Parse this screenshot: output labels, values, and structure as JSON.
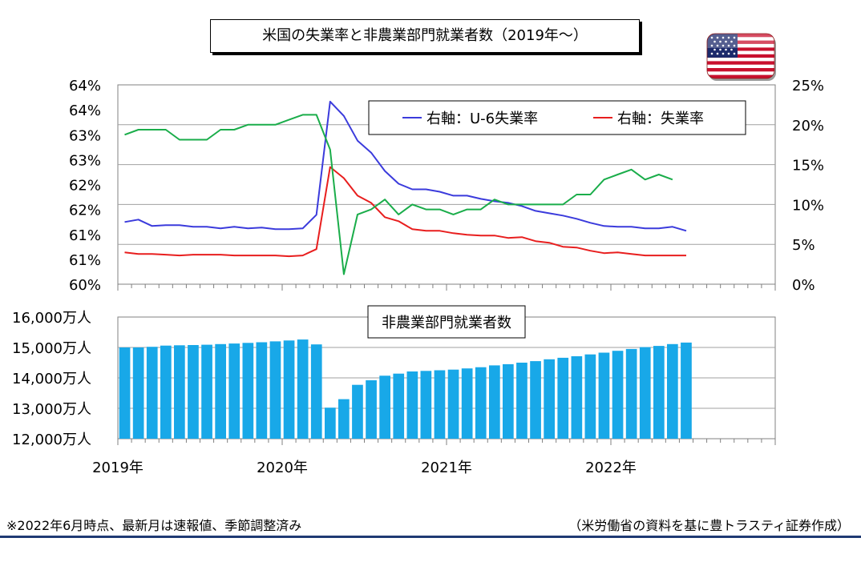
{
  "title": "米国の失業率と非農業部門就業者数（2019年〜）",
  "footer": {
    "note": "※2022年6月時点、最新月は速報値、季節調整済み",
    "source": "（米労働省の資料を基に豊トラスティ証券作成）"
  },
  "chart_data": [
    {
      "type": "line",
      "y_ticks_left": [
        "60%",
        "61%",
        "61%",
        "62%",
        "62%",
        "63%",
        "63%",
        "64%",
        "64%"
      ],
      "y_ticks_right": [
        "0%",
        "5%",
        "10%",
        "15%",
        "20%",
        "25%"
      ],
      "ylim_left": [
        60,
        64
      ],
      "ylim_right": [
        0,
        25
      ],
      "legend_position": "top-right",
      "series": [
        {
          "name": "右軸：U-6失業率",
          "axis": "right",
          "color": "#3b3bdc",
          "values": [
            7.8,
            8.1,
            7.3,
            7.4,
            7.4,
            7.2,
            7.2,
            7.0,
            7.2,
            7.0,
            7.1,
            6.9,
            6.9,
            7.0,
            8.7,
            22.9,
            21.1,
            18.0,
            16.5,
            14.2,
            12.6,
            11.9,
            11.9,
            11.6,
            11.1,
            11.1,
            10.7,
            10.4,
            10.2,
            9.8,
            9.2,
            8.9,
            8.6,
            8.2,
            7.7,
            7.3,
            7.2,
            7.2,
            7.0,
            7.0,
            7.2,
            6.7
          ]
        },
        {
          "name": "右軸：失業率",
          "axis": "right",
          "color": "#e81e1e",
          "values": [
            4.0,
            3.8,
            3.8,
            3.7,
            3.6,
            3.7,
            3.7,
            3.7,
            3.6,
            3.6,
            3.6,
            3.6,
            3.5,
            3.6,
            4.4,
            14.7,
            13.3,
            11.1,
            10.2,
            8.4,
            7.9,
            6.9,
            6.7,
            6.7,
            6.4,
            6.2,
            6.1,
            6.1,
            5.8,
            5.9,
            5.4,
            5.2,
            4.7,
            4.6,
            4.2,
            3.9,
            4.0,
            3.8,
            3.6,
            3.6,
            3.6,
            3.6
          ]
        },
        {
          "name": "",
          "axis": "left",
          "color": "#1aad4a",
          "values": [
            63.0,
            63.1,
            63.1,
            63.1,
            62.9,
            62.9,
            62.9,
            63.1,
            63.1,
            63.2,
            63.2,
            63.2,
            63.3,
            63.4,
            63.4,
            62.7,
            60.2,
            61.4,
            61.5,
            61.7,
            61.4,
            61.6,
            61.5,
            61.5,
            61.4,
            61.5,
            61.5,
            61.7,
            61.6,
            61.6,
            61.6,
            61.6,
            61.6,
            61.8,
            61.8,
            62.1,
            62.2,
            62.3,
            62.1,
            62.2,
            62.1,
            null
          ]
        }
      ]
    },
    {
      "type": "bar",
      "title": "非農業部門就業者数",
      "y_ticks": [
        "12,000万人",
        "13,000万人",
        "14,000万人",
        "15,000万人",
        "16,000万人"
      ],
      "ylim": [
        12000,
        16000
      ],
      "color": "#18a8e8",
      "values": [
        15000,
        15000,
        15020,
        15060,
        15070,
        15080,
        15090,
        15110,
        15130,
        15150,
        15170,
        15200,
        15230,
        15260,
        15100,
        13020,
        13300,
        13770,
        13920,
        14070,
        14140,
        14210,
        14230,
        14250,
        14270,
        14310,
        14350,
        14410,
        14450,
        14500,
        14550,
        14610,
        14660,
        14710,
        14770,
        14830,
        14890,
        14950,
        15010,
        15050,
        15110,
        15160
      ]
    }
  ],
  "x_labels": [
    "2019年",
    "2020年",
    "2021年",
    "2022年"
  ]
}
